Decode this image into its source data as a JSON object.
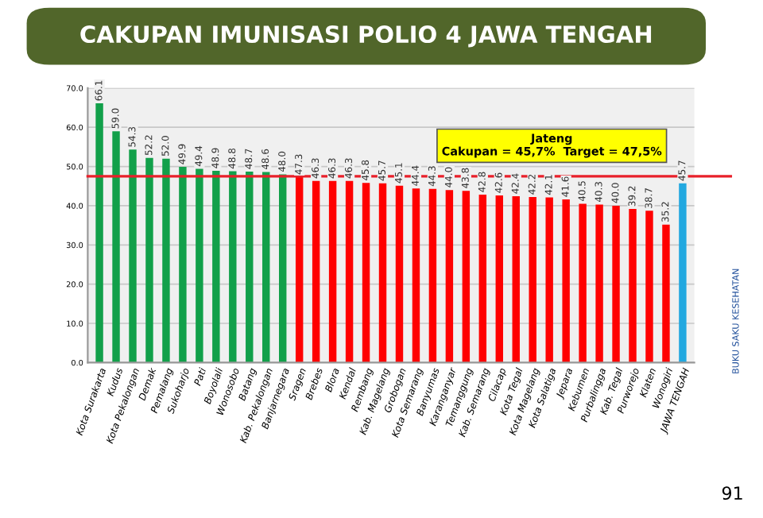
{
  "chart_data": {
    "type": "bar",
    "title": "CAKUPAN IMUNISASI POLIO 4 JAWA TENGAH",
    "categories": [
      "Kota Surakarta",
      "Kudus",
      "Kota Pekalongan",
      "Demak",
      "Pemalang",
      "Sukoharjo",
      "Pati",
      "Boyolali",
      "Wonosobo",
      "Batang",
      "Kab. Pekalongan",
      "Banjarnegara",
      "Sragen",
      "Brebes",
      "Blora",
      "Kendal",
      "Rembang",
      "Kab. Magelang",
      "Grobogan",
      "Kota Semarang",
      "Banyumas",
      "Karanganyar",
      "Temanggung",
      "Kab. Semarang",
      "Cilacap",
      "Kota Tegal",
      "Kota Magelang",
      "Kota Salatiga",
      "Jepara",
      "Kebumen",
      "Purbalingga",
      "Kab. Tegal",
      "Purworejo",
      "Klaten",
      "Wonogiri",
      "JAWA TENGAH"
    ],
    "values": [
      66.1,
      59.0,
      54.3,
      52.2,
      52.0,
      49.9,
      49.4,
      48.9,
      48.8,
      48.7,
      48.6,
      48.0,
      47.3,
      46.3,
      46.3,
      46.3,
      45.8,
      45.7,
      45.1,
      44.4,
      44.3,
      44.0,
      43.8,
      42.8,
      42.6,
      42.4,
      42.2,
      42.1,
      41.6,
      40.5,
      40.3,
      40.0,
      39.2,
      38.7,
      35.2,
      45.7
    ],
    "value_labels": [
      "66.1",
      "59.0",
      "54.3",
      "52.2",
      "52.0",
      "49.9",
      "49.4",
      "48.9",
      "48.8",
      "48.7",
      "48.6",
      "48.0",
      "47.3",
      "46.3",
      "46.3",
      "46.3",
      "45.8",
      "45.7",
      "45.1",
      "44.4",
      "44.3",
      "44.0",
      "43.8",
      "42.8",
      "42.6",
      "42.4",
      "42.2",
      "42.1",
      "41.6",
      "40.5",
      "40.3",
      "40.0",
      "39.2",
      "38.7",
      "35.2",
      "45.7"
    ],
    "colors": [
      "#12a04a",
      "#12a04a",
      "#12a04a",
      "#12a04a",
      "#12a04a",
      "#12a04a",
      "#12a04a",
      "#12a04a",
      "#12a04a",
      "#12a04a",
      "#12a04a",
      "#12a04a",
      "#ff0000",
      "#ff0000",
      "#ff0000",
      "#ff0000",
      "#ff0000",
      "#ff0000",
      "#ff0000",
      "#ff0000",
      "#ff0000",
      "#ff0000",
      "#ff0000",
      "#ff0000",
      "#ff0000",
      "#ff0000",
      "#ff0000",
      "#ff0000",
      "#ff0000",
      "#ff0000",
      "#ff0000",
      "#ff0000",
      "#ff0000",
      "#ff0000",
      "#ff0000",
      "#22a8e0"
    ],
    "ylim": [
      0,
      70
    ],
    "yticks": [
      {
        "value": 0,
        "label": "0.0"
      },
      {
        "value": 10,
        "label": "10.0"
      },
      {
        "value": 20,
        "label": "20.0"
      },
      {
        "value": 30,
        "label": "30.0"
      },
      {
        "value": 40,
        "label": "40.0"
      },
      {
        "value": 50,
        "label": "50.0"
      },
      {
        "value": 60,
        "label": "60.0"
      },
      {
        "value": 70,
        "label": "70.0"
      }
    ],
    "grid": "y",
    "ref_lines": [
      {
        "axis": "y",
        "value": 47.5,
        "color": "#e8202a"
      }
    ],
    "annotations": [
      "Jateng",
      "Cakupan = 45,7%  Target = 47,5%",
      "BUKU SAKU KESEHATAN",
      "91"
    ]
  }
}
